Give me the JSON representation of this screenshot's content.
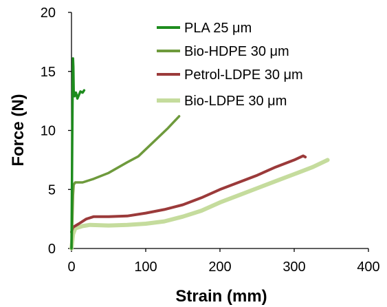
{
  "chart_data": {
    "type": "line",
    "title": "",
    "xlabel": "Strain (mm)",
    "ylabel": "Force (N)",
    "xlim": [
      0,
      400
    ],
    "ylim": [
      0,
      20
    ],
    "xticks": [
      0,
      100,
      200,
      300,
      400
    ],
    "yticks": [
      0,
      5,
      10,
      15,
      20
    ],
    "xtick_labels": [
      "0",
      "100",
      "200",
      "300",
      "400"
    ],
    "ytick_labels": [
      "0",
      "5",
      "10",
      "15",
      "20"
    ],
    "grid": false,
    "legend_position": "top-right",
    "series": [
      {
        "name": "PLA 25 μm",
        "color": "#1e8c1e",
        "points": [
          [
            0,
            0
          ],
          [
            0.5,
            4
          ],
          [
            1,
            9
          ],
          [
            1.5,
            13
          ],
          [
            2,
            16.1
          ],
          [
            2.5,
            15.4
          ],
          [
            3,
            13.4
          ],
          [
            4,
            12.9
          ],
          [
            6,
            13.2
          ],
          [
            8,
            12.7
          ],
          [
            10,
            13.0
          ],
          [
            12,
            13.3
          ],
          [
            15,
            13.2
          ],
          [
            17,
            13.4
          ]
        ]
      },
      {
        "name": "Bio-HDPE 30 μm",
        "color": "#6e9a3c",
        "points": [
          [
            0,
            0
          ],
          [
            1,
            2
          ],
          [
            2,
            4.5
          ],
          [
            3,
            5.4
          ],
          [
            5,
            5.6
          ],
          [
            15,
            5.6
          ],
          [
            30,
            5.9
          ],
          [
            50,
            6.4
          ],
          [
            75,
            7.3
          ],
          [
            90,
            7.8
          ],
          [
            110,
            9.0
          ],
          [
            130,
            10.2
          ],
          [
            145,
            11.2
          ]
        ]
      },
      {
        "name": "Petrol-LDPE 30 μm",
        "color": "#9b3a3a",
        "points": [
          [
            0,
            1.4
          ],
          [
            2,
            1.8
          ],
          [
            10,
            2.1
          ],
          [
            20,
            2.5
          ],
          [
            30,
            2.7
          ],
          [
            50,
            2.7
          ],
          [
            75,
            2.75
          ],
          [
            100,
            3.0
          ],
          [
            125,
            3.3
          ],
          [
            150,
            3.7
          ],
          [
            175,
            4.3
          ],
          [
            200,
            5.0
          ],
          [
            225,
            5.6
          ],
          [
            250,
            6.2
          ],
          [
            275,
            6.9
          ],
          [
            300,
            7.5
          ],
          [
            312,
            7.85
          ],
          [
            315,
            7.75
          ]
        ]
      },
      {
        "name": "Bio-LDPE 30 μm",
        "color": "#c5dc9d",
        "points": [
          [
            0,
            0
          ],
          [
            2,
            1.2
          ],
          [
            5,
            1.7
          ],
          [
            15,
            1.9
          ],
          [
            25,
            2.0
          ],
          [
            50,
            1.95
          ],
          [
            75,
            2.0
          ],
          [
            100,
            2.1
          ],
          [
            125,
            2.3
          ],
          [
            150,
            2.7
          ],
          [
            175,
            3.2
          ],
          [
            200,
            3.9
          ],
          [
            225,
            4.5
          ],
          [
            250,
            5.1
          ],
          [
            275,
            5.7
          ],
          [
            300,
            6.3
          ],
          [
            325,
            6.9
          ],
          [
            345,
            7.5
          ]
        ]
      }
    ]
  }
}
